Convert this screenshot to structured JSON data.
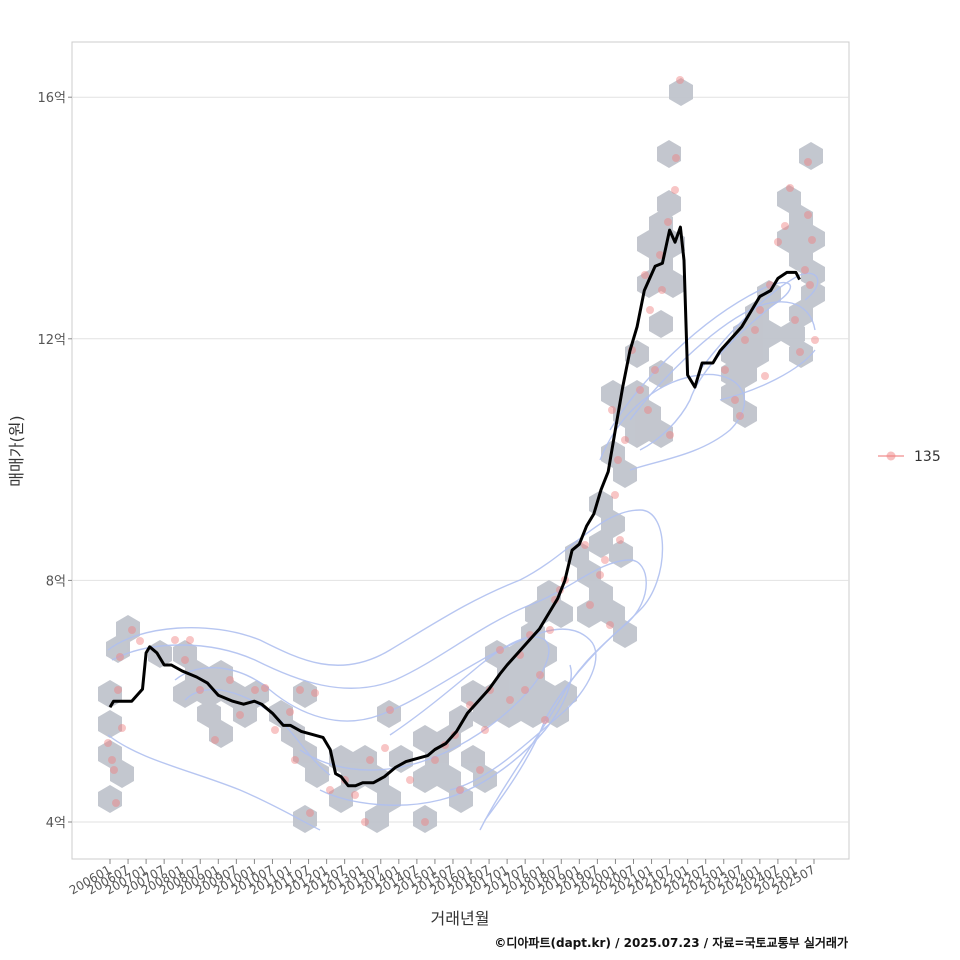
{
  "chart_data": {
    "type": "line",
    "ylabel": "매매가(원)",
    "xlabel": "거래년월",
    "ylim": [
      3.4,
      16.9
    ],
    "y_ticks": [
      {
        "value": 4,
        "label": "4억"
      },
      {
        "value": 8,
        "label": "8억"
      },
      {
        "value": 12,
        "label": "12억"
      },
      {
        "value": 16,
        "label": "16억"
      }
    ],
    "x_tick_labels": [
      "200601",
      "200607",
      "200701",
      "200707",
      "200801",
      "200807",
      "200901",
      "200907",
      "201001",
      "201007",
      "201101",
      "201107",
      "201201",
      "201207",
      "201301",
      "201307",
      "201401",
      "201407",
      "201501",
      "201507",
      "201601",
      "201607",
      "201701",
      "201707",
      "201801",
      "201807",
      "201901",
      "201907",
      "202001",
      "202007",
      "202101",
      "202107",
      "202201",
      "202207",
      "202301",
      "202307",
      "202401",
      "202407",
      "202501",
      "202507"
    ],
    "grid": true,
    "legend": {
      "position": "right",
      "entries": [
        {
          "label": "135",
          "color": "#f08080"
        }
      ]
    },
    "series": [
      {
        "type": "line",
        "color": "#000000",
        "points": [
          [
            2006.0,
            5.9
          ],
          [
            2006.1,
            6.0
          ],
          [
            2006.6,
            6.0
          ],
          [
            2006.9,
            6.2
          ],
          [
            2007.0,
            6.8
          ],
          [
            2007.1,
            6.9
          ],
          [
            2007.3,
            6.8
          ],
          [
            2007.5,
            6.6
          ],
          [
            2007.7,
            6.6
          ],
          [
            2008.0,
            6.5
          ],
          [
            2008.4,
            6.4
          ],
          [
            2008.7,
            6.3
          ],
          [
            2009.0,
            6.1
          ],
          [
            2009.4,
            6.0
          ],
          [
            2009.7,
            5.95
          ],
          [
            2010.0,
            6.0
          ],
          [
            2010.2,
            5.95
          ],
          [
            2010.5,
            5.8
          ],
          [
            2010.8,
            5.6
          ],
          [
            2011.0,
            5.6
          ],
          [
            2011.3,
            5.5
          ],
          [
            2011.6,
            5.45
          ],
          [
            2011.9,
            5.4
          ],
          [
            2012.1,
            5.2
          ],
          [
            2012.25,
            4.8
          ],
          [
            2012.4,
            4.75
          ],
          [
            2012.6,
            4.6
          ],
          [
            2012.8,
            4.6
          ],
          [
            2013.0,
            4.65
          ],
          [
            2013.3,
            4.65
          ],
          [
            2013.6,
            4.75
          ],
          [
            2013.9,
            4.9
          ],
          [
            2014.2,
            5.0
          ],
          [
            2014.5,
            5.05
          ],
          [
            2014.8,
            5.1
          ],
          [
            2015.0,
            5.2
          ],
          [
            2015.3,
            5.3
          ],
          [
            2015.6,
            5.5
          ],
          [
            2015.9,
            5.8
          ],
          [
            2016.2,
            6.0
          ],
          [
            2016.5,
            6.2
          ],
          [
            2016.8,
            6.45
          ],
          [
            2017.0,
            6.6
          ],
          [
            2017.3,
            6.8
          ],
          [
            2017.6,
            7.0
          ],
          [
            2017.9,
            7.2
          ],
          [
            2018.1,
            7.4
          ],
          [
            2018.4,
            7.7
          ],
          [
            2018.6,
            8.0
          ],
          [
            2018.8,
            8.5
          ],
          [
            2019.0,
            8.6
          ],
          [
            2019.2,
            8.9
          ],
          [
            2019.4,
            9.1
          ],
          [
            2019.6,
            9.5
          ],
          [
            2019.8,
            9.8
          ],
          [
            2020.0,
            10.5
          ],
          [
            2020.2,
            11.2
          ],
          [
            2020.4,
            11.8
          ],
          [
            2020.6,
            12.2
          ],
          [
            2020.8,
            12.8
          ],
          [
            2020.95,
            13.0
          ],
          [
            2021.1,
            13.2
          ],
          [
            2021.3,
            13.25
          ],
          [
            2021.5,
            13.8
          ],
          [
            2021.65,
            13.6
          ],
          [
            2021.8,
            13.85
          ],
          [
            2021.9,
            13.3
          ],
          [
            2022.0,
            11.4
          ],
          [
            2022.2,
            11.2
          ],
          [
            2022.4,
            11.6
          ],
          [
            2022.7,
            11.6
          ],
          [
            2022.9,
            11.8
          ],
          [
            2023.2,
            12.0
          ],
          [
            2023.5,
            12.2
          ],
          [
            2023.8,
            12.5
          ],
          [
            2024.0,
            12.7
          ],
          [
            2024.3,
            12.8
          ],
          [
            2024.5,
            13.0
          ],
          [
            2024.75,
            13.1
          ],
          [
            2025.0,
            13.1
          ],
          [
            2025.1,
            12.98
          ]
        ]
      }
    ]
  },
  "caption": "©디아파트(dapt.kr) / 2025.07.23 / 자료=국토교통부 실거래가"
}
